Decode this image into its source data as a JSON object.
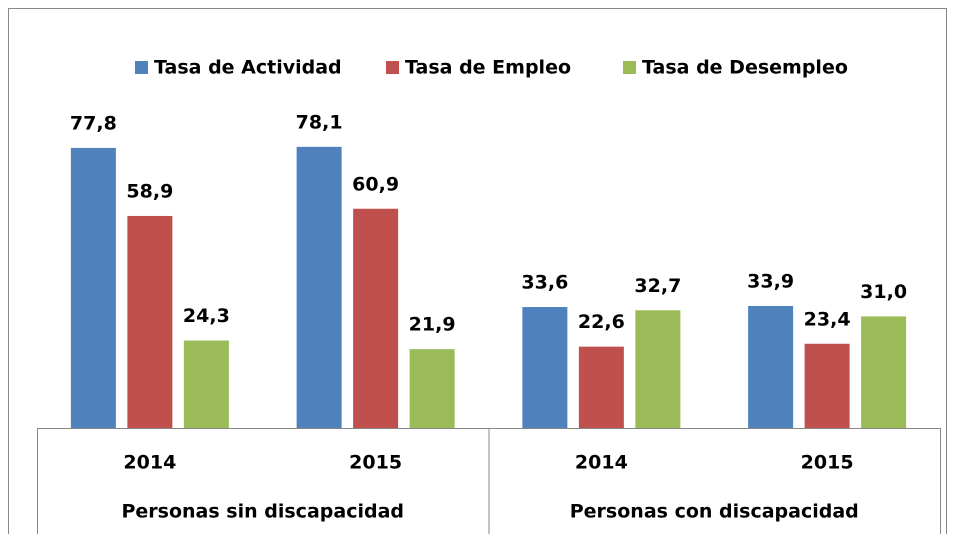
{
  "chart_data": {
    "type": "bar",
    "categories": [
      "2014",
      "2015",
      "2014",
      "2015"
    ],
    "category_groups": [
      "Personas sin discapacidad",
      "Personas con discapacidad"
    ],
    "series": [
      {
        "name": "Tasa de Actividad",
        "color": "#4f81bd",
        "values": [
          77.8,
          78.1,
          33.6,
          33.9
        ],
        "value_labels": [
          "77,8",
          "78,1",
          "33,6",
          "33,9"
        ]
      },
      {
        "name": "Tasa de Empleo",
        "color": "#c0504d",
        "values": [
          58.9,
          60.9,
          22.6,
          23.4
        ],
        "value_labels": [
          "58,9",
          "60,9",
          "22,6",
          "23,4"
        ]
      },
      {
        "name": "Tasa de Desempleo",
        "color": "#9bbb59",
        "values": [
          24.3,
          21.9,
          32.7,
          31.0
        ],
        "value_labels": [
          "24,3",
          "21,9",
          "32,7",
          "31,0"
        ]
      }
    ],
    "legend": "top"
  }
}
